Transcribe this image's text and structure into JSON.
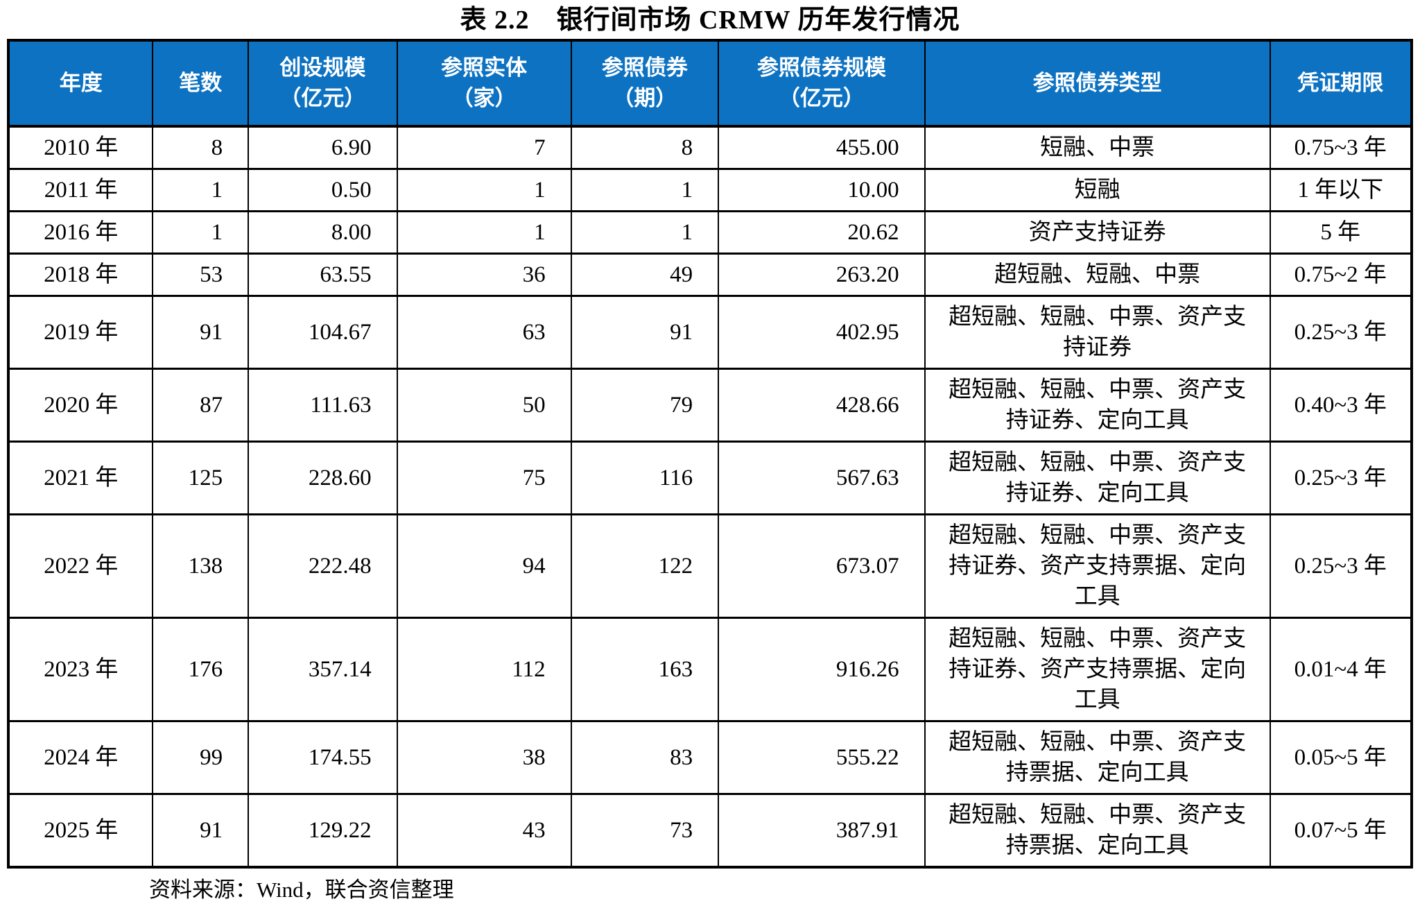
{
  "title": "表 2.2　银行间市场 CRMW 历年发行情况",
  "header_color": "#0d72c2",
  "table": {
    "columns": [
      {
        "key": "year",
        "label_lines": [
          "年度"
        ]
      },
      {
        "key": "count",
        "label_lines": [
          "笔数"
        ]
      },
      {
        "key": "creation-scale",
        "label_lines": [
          "创设规模",
          "（亿元）"
        ]
      },
      {
        "key": "ref-entities",
        "label_lines": [
          "参照实体",
          "（家）"
        ]
      },
      {
        "key": "ref-bonds",
        "label_lines": [
          "参照债券",
          "（期）"
        ]
      },
      {
        "key": "ref-bond-scale",
        "label_lines": [
          "参照债券规模",
          "（亿元）"
        ]
      },
      {
        "key": "ref-bond-types",
        "label_lines": [
          "参照债券类型"
        ]
      },
      {
        "key": "term",
        "label_lines": [
          "凭证期限"
        ]
      }
    ],
    "rows": [
      [
        "2010 年",
        "8",
        "6.90",
        "7",
        "8",
        "455.00",
        "短融、中票",
        "0.75~3 年"
      ],
      [
        "2011 年",
        "1",
        "0.50",
        "1",
        "1",
        "10.00",
        "短融",
        "1 年以下"
      ],
      [
        "2016 年",
        "1",
        "8.00",
        "1",
        "1",
        "20.62",
        "资产支持证券",
        "5 年"
      ],
      [
        "2018 年",
        "53",
        "63.55",
        "36",
        "49",
        "263.20",
        "超短融、短融、中票",
        "0.75~2 年"
      ],
      [
        "2019 年",
        "91",
        "104.67",
        "63",
        "91",
        "402.95",
        "超短融、短融、中票、资产支持证券",
        "0.25~3 年"
      ],
      [
        "2020 年",
        "87",
        "111.63",
        "50",
        "79",
        "428.66",
        "超短融、短融、中票、资产支持证券、定向工具",
        "0.40~3 年"
      ],
      [
        "2021 年",
        "125",
        "228.60",
        "75",
        "116",
        "567.63",
        "超短融、短融、中票、资产支持证券、定向工具",
        "0.25~3 年"
      ],
      [
        "2022 年",
        "138",
        "222.48",
        "94",
        "122",
        "673.07",
        "超短融、短融、中票、资产支持证券、资产支持票据、定向工具",
        "0.25~3 年"
      ],
      [
        "2023 年",
        "176",
        "357.14",
        "112",
        "163",
        "916.26",
        "超短融、短融、中票、资产支持证券、资产支持票据、定向工具",
        "0.01~4 年"
      ],
      [
        "2024 年",
        "99",
        "174.55",
        "38",
        "83",
        "555.22",
        "超短融、短融、中票、资产支持票据、定向工具",
        "0.05~5 年"
      ],
      [
        "2025 年",
        "91",
        "129.22",
        "43",
        "73",
        "387.91",
        "超短融、短融、中票、资产支持票据、定向工具",
        "0.07~5 年"
      ]
    ]
  },
  "source_note": "资料来源：Wind，联合资信整理"
}
